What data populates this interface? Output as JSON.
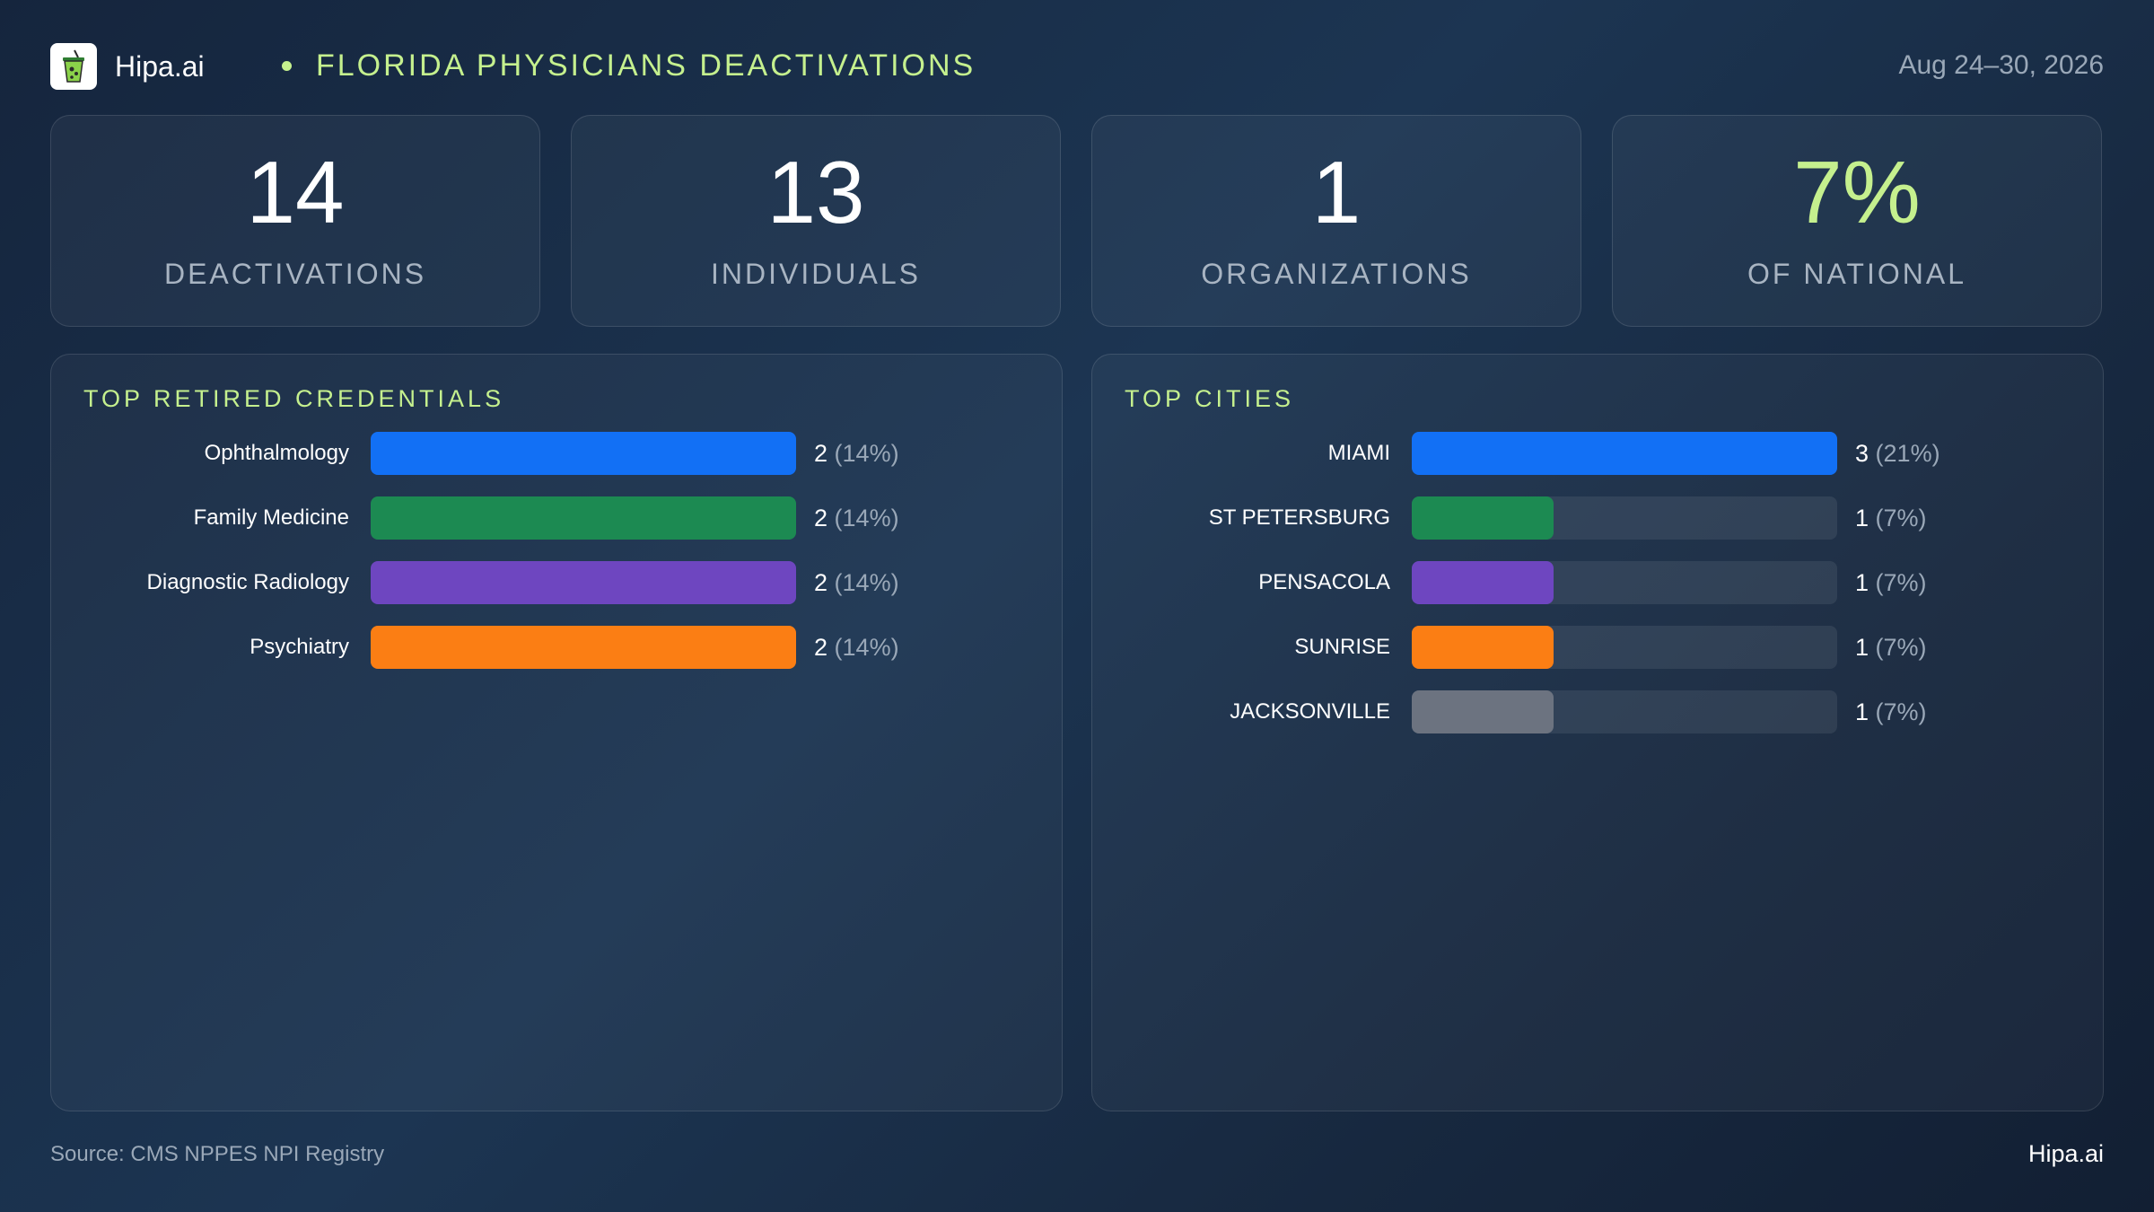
{
  "header": {
    "brand": "Hipa.ai",
    "title": "FLORIDA PHYSICIANS DEACTIVATIONS",
    "date_range": "Aug 24–30, 2026",
    "logo_icon": "cup-drink-icon"
  },
  "kpis": [
    {
      "value": "14",
      "label": "DEACTIVATIONS"
    },
    {
      "value": "13",
      "label": "INDIVIDUALS"
    },
    {
      "value": "1",
      "label": "ORGANIZATIONS"
    },
    {
      "value": "7%",
      "label": "OF NATIONAL"
    }
  ],
  "colors": {
    "accent": "#c5f08e",
    "blue": "#1270f5",
    "green": "#1c8a52",
    "purple": "#6e46c0",
    "orange": "#fb7e14",
    "gray": "#6c7380"
  },
  "chart_data": [
    {
      "type": "bar",
      "orientation": "horizontal",
      "title": "TOP RETIRED CREDENTIALS",
      "categories": [
        "Ophthalmology",
        "Family Medicine",
        "Diagnostic Radiology",
        "Psychiatry"
      ],
      "values": [
        2,
        2,
        2,
        2
      ],
      "labels": [
        "2",
        "2",
        "2",
        "2"
      ],
      "percent_labels": [
        "(14%)",
        "(14%)",
        "(14%)",
        "(14%)"
      ],
      "colors": [
        "#1270f5",
        "#1c8a52",
        "#6e46c0",
        "#fb7e14"
      ],
      "xlim": [
        0,
        2
      ],
      "grid": false
    },
    {
      "type": "bar",
      "orientation": "horizontal",
      "title": "TOP CITIES",
      "categories": [
        "MIAMI",
        "ST PETERSBURG",
        "PENSACOLA",
        "SUNRISE",
        "JACKSONVILLE"
      ],
      "values": [
        3,
        1,
        1,
        1,
        1
      ],
      "labels": [
        "3",
        "1",
        "1",
        "1",
        "1"
      ],
      "percent_labels": [
        "(21%)",
        "(7%)",
        "(7%)",
        "(7%)",
        "(7%)"
      ],
      "colors": [
        "#1270f5",
        "#1c8a52",
        "#6e46c0",
        "#fb7e14",
        "#6c7380"
      ],
      "xlim": [
        0,
        3
      ],
      "grid": false
    }
  ],
  "footer": {
    "source": "Source: CMS NPPES NPI Registry",
    "brand": "Hipa.ai"
  }
}
